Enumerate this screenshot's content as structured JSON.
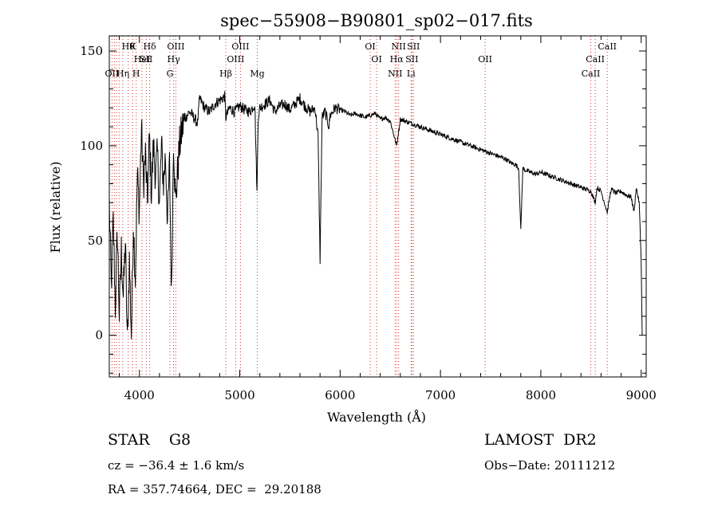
{
  "chart_data": {
    "type": "line",
    "title": "spec−55908−B90801_sp02−017.fits",
    "xlabel": "Wavelength (Å)",
    "ylabel": "Flux (relative)",
    "xlim": [
      3700,
      9050
    ],
    "ylim": [
      -22,
      158
    ],
    "xticks": [
      4000,
      5000,
      6000,
      7000,
      8000,
      9000
    ],
    "yticks": [
      0,
      50,
      100,
      150
    ],
    "series": [
      {
        "x": [
          3700,
          3720,
          3740,
          3760,
          3780,
          3800,
          3820,
          3840,
          3860,
          3880,
          3900,
          3920,
          3940,
          3960,
          3980,
          4000,
          4020,
          4040,
          4060,
          4080,
          4100,
          4120,
          4140,
          4160,
          4180,
          4200,
          4220,
          4240,
          4260,
          4280,
          4300,
          4320,
          4340,
          4360,
          4380,
          4400,
          4430,
          4460,
          4500,
          4540,
          4580,
          4600,
          4650,
          4700,
          4750,
          4800,
          4850,
          4861,
          4900,
          4950,
          5000,
          5050,
          5100,
          5150,
          5172,
          5183,
          5200,
          5250,
          5300,
          5350,
          5400,
          5450,
          5500,
          5550,
          5600,
          5650,
          5700,
          5750,
          5780,
          5800,
          5820,
          5850,
          5890,
          5900,
          5950,
          6000,
          6050,
          6100,
          6150,
          6200,
          6250,
          6300,
          6350,
          6400,
          6450,
          6500,
          6563,
          6600,
          6650,
          6700,
          6750,
          6800,
          6850,
          6900,
          6950,
          7000,
          7050,
          7100,
          7150,
          7200,
          7250,
          7300,
          7350,
          7400,
          7450,
          7500,
          7550,
          7600,
          7650,
          7700,
          7750,
          7780,
          7800,
          7820,
          7850,
          7900,
          7950,
          8000,
          8050,
          8100,
          8150,
          8200,
          8250,
          8300,
          8350,
          8400,
          8450,
          8500,
          8542,
          8560,
          8600,
          8662,
          8700,
          8750,
          8800,
          8850,
          8900,
          8930,
          8950,
          8980,
          9000,
          9010
        ],
        "y": [
          70,
          25,
          60,
          15,
          55,
          10,
          45,
          20,
          50,
          -5,
          40,
          0,
          60,
          30,
          85,
          65,
          110,
          80,
          95,
          70,
          105,
          75,
          100,
          85,
          95,
          70,
          100,
          80,
          95,
          60,
          90,
          20,
          105,
          70,
          85,
          100,
          110,
          115,
          118,
          115,
          112,
          125,
          120,
          118,
          122,
          124,
          126,
          115,
          120,
          118,
          121,
          119,
          118,
          122,
          75,
          115,
          120,
          122,
          124,
          118,
          121,
          122,
          119,
          122,
          125,
          121,
          118,
          120,
          105,
          40,
          115,
          118,
          110,
          116,
          120,
          119,
          118,
          116,
          117,
          116,
          115,
          116,
          117,
          114,
          115,
          113,
          100,
          114,
          113,
          112,
          111,
          110,
          109,
          108,
          107,
          106,
          105,
          104,
          103,
          102,
          101,
          100,
          99,
          98,
          97,
          96,
          95,
          94,
          93,
          91,
          90,
          88,
          55,
          88,
          87,
          86,
          85,
          86,
          85,
          84,
          83,
          82,
          81,
          80,
          79,
          78,
          77,
          76,
          70,
          78,
          76,
          65,
          77,
          75,
          76,
          74,
          73,
          65,
          78,
          70,
          40,
          0
        ],
        "_": "generated curve"
      }
    ],
    "lines": [
      {
        "x": 3727,
        "label": "OII",
        "row": 3
      },
      {
        "x": 3750,
        "label": "",
        "row": 0
      },
      {
        "x": 3771,
        "label": "",
        "row": 0
      },
      {
        "x": 3798,
        "label": "",
        "row": 0
      },
      {
        "x": 3835,
        "label": "Hη",
        "row": 3
      },
      {
        "x": 3889,
        "label": "Hθ",
        "row": 1
      },
      {
        "x": 3933,
        "label": "K",
        "row": 1
      },
      {
        "x": 3968,
        "label": "H",
        "row": 3
      },
      {
        "x": 4026,
        "label": "HeI",
        "row": 2
      },
      {
        "x": 4068,
        "label": "SII",
        "row": 2
      },
      {
        "x": 4102,
        "label": "Hδ",
        "row": 1
      },
      {
        "x": 4304,
        "label": "G",
        "row": 3
      },
      {
        "x": 4341,
        "label": "Hγ",
        "row": 2
      },
      {
        "x": 4363,
        "label": "OIII",
        "row": 1
      },
      {
        "x": 4861,
        "label": "Hβ",
        "row": 3
      },
      {
        "x": 4959,
        "label": "OIII",
        "row": 2
      },
      {
        "x": 5007,
        "label": "OIII",
        "row": 1
      },
      {
        "x": 5175,
        "label": "Mg",
        "row": 3
      },
      {
        "x": 6300,
        "label": "OI",
        "row": 1
      },
      {
        "x": 6364,
        "label": "OI",
        "row": 2
      },
      {
        "x": 6548,
        "label": "NII",
        "row": 3
      },
      {
        "x": 6563,
        "label": "Hα",
        "row": 2
      },
      {
        "x": 6583,
        "label": "NII",
        "row": 1
      },
      {
        "x": 6707,
        "label": "Li",
        "row": 3
      },
      {
        "x": 6716,
        "label": "SII",
        "row": 2
      },
      {
        "x": 6731,
        "label": "SII",
        "row": 1
      },
      {
        "x": 7445,
        "label": "OII",
        "row": 2
      },
      {
        "x": 8498,
        "label": "CaII",
        "row": 3
      },
      {
        "x": 8542,
        "label": "CaII",
        "row": 2
      },
      {
        "x": 8662,
        "label": "CaII",
        "row": 1
      }
    ]
  },
  "info": {
    "class": "STAR    G8",
    "survey": "LAMOST  DR2",
    "cz": "cz = −36.4 ± 1.6 km/s",
    "obsdate": "Obs−Date: 20111212",
    "radec": "RA = 357.74664, DEC =  29.20188"
  }
}
